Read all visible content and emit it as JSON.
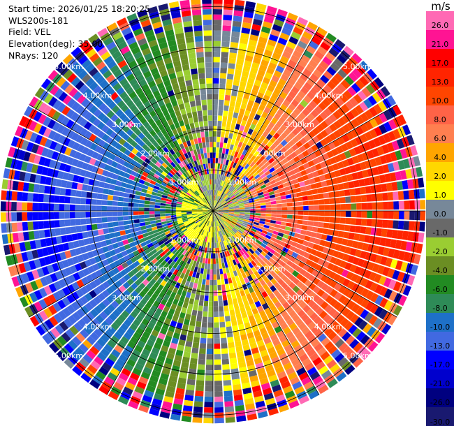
{
  "header": {
    "start_time": "Start time: 2026/01/25 18:20:25",
    "instrument": "WLS200s-181",
    "field": "Field: VEL",
    "elevation": "Elevation(deg): 35.00",
    "nrays": "NRays: 120"
  },
  "chart_data": {
    "type": "heatmap",
    "projection": "polar (PPI scan)",
    "field": "VEL",
    "units": "m/s",
    "n_rays": 120,
    "range_ring_labels": [
      "1.00km",
      "2.00km",
      "3.00km",
      "4.00km",
      "5.00km"
    ],
    "range_rings_km": [
      1,
      2,
      3,
      4,
      5
    ],
    "max_range_km": 5.2,
    "colorbar": {
      "label": "m/s",
      "tick_labels": [
        "26.0",
        "21.0",
        "17.0",
        "13.0",
        "10.0",
        "8.0",
        "6.0",
        "4.0",
        "2.0",
        "1.0",
        "0.0",
        "-1.0",
        "-2.0",
        "-4.0",
        "-6.0",
        "-8.0",
        "-10.0",
        "-13.0",
        "-17.0",
        "-21.0",
        "-26.0",
        "-30.0"
      ],
      "bins": [
        {
          "min": 26,
          "max": 30,
          "color": "#ff69b4"
        },
        {
          "min": 21,
          "max": 26,
          "color": "#ff1493"
        },
        {
          "min": 17,
          "max": 21,
          "color": "#ff0000"
        },
        {
          "min": 13,
          "max": 17,
          "color": "#ff2400"
        },
        {
          "min": 10,
          "max": 13,
          "color": "#ff4500"
        },
        {
          "min": 8,
          "max": 10,
          "color": "#ff6347"
        },
        {
          "min": 6,
          "max": 8,
          "color": "#ff7f50"
        },
        {
          "min": 4,
          "max": 6,
          "color": "#ffa500"
        },
        {
          "min": 2,
          "max": 4,
          "color": "#ffd700"
        },
        {
          "min": 1,
          "max": 2,
          "color": "#ffff00"
        },
        {
          "min": 0,
          "max": 1,
          "color": "#778899"
        },
        {
          "min": -1,
          "max": 0,
          "color": "#696969"
        },
        {
          "min": -2,
          "max": -1,
          "color": "#9acd32"
        },
        {
          "min": -4,
          "max": -2,
          "color": "#6b8e23"
        },
        {
          "min": -6,
          "max": -4,
          "color": "#228b22"
        },
        {
          "min": -8,
          "max": -6,
          "color": "#2e8b57"
        },
        {
          "min": -10,
          "max": -8,
          "color": "#1e70c8"
        },
        {
          "min": -13,
          "max": -10,
          "color": "#4169e1"
        },
        {
          "min": -17,
          "max": -13,
          "color": "#0000ff"
        },
        {
          "min": -21,
          "max": -17,
          "color": "#0000cd"
        },
        {
          "min": -26,
          "max": -21,
          "color": "#000080"
        },
        {
          "min": -30,
          "max": -26,
          "color": "#191970"
        }
      ]
    },
    "wind_pattern": {
      "description": "dipole velocity pattern",
      "approaching_sector_azimuth_deg": 270,
      "receding_sector_azimuth_deg": 90,
      "peak_velocity_ms": 14
    }
  }
}
